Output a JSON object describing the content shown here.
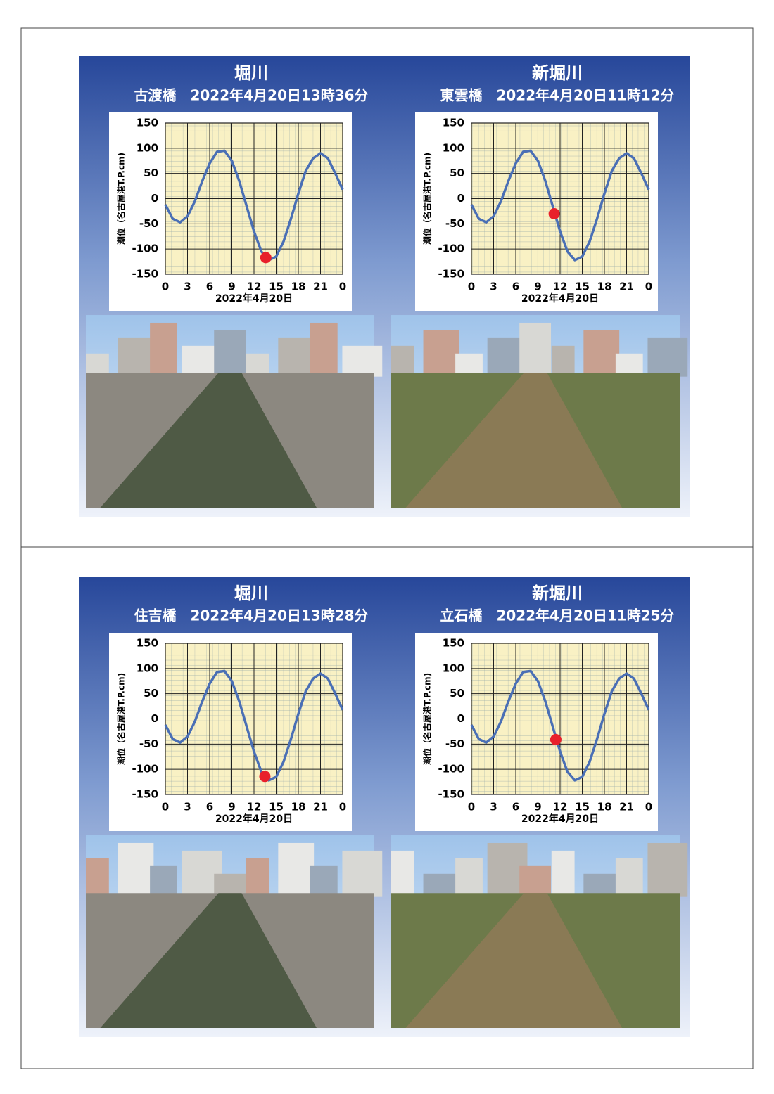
{
  "chart_data": [
    {
      "type": "line",
      "title": "堀川",
      "subtitle": "古渡橋　2022年4月20日13時36分",
      "xlabel": "2022年4月20日",
      "ylabel": "潮位（名古屋港T.P.cm)",
      "x": [
        0,
        1,
        2,
        3,
        4,
        5,
        6,
        7,
        8,
        9,
        10,
        11,
        12,
        13,
        14,
        15,
        16,
        17,
        18,
        19,
        20,
        21,
        22,
        23,
        24
      ],
      "values": [
        -12,
        -40,
        -47,
        -35,
        -5,
        35,
        70,
        93,
        95,
        75,
        35,
        -15,
        -65,
        -105,
        -122,
        -115,
        -85,
        -40,
        10,
        55,
        80,
        90,
        80,
        50,
        18
      ],
      "color": "#4a6fb5",
      "marker": {
        "x": 13.6,
        "y": -117,
        "color": "#e8202a"
      },
      "xlim": [
        0,
        24
      ],
      "xticks": [
        0,
        3,
        6,
        9,
        12,
        15,
        18,
        21,
        {
          "value": 24,
          "label": "0"
        }
      ],
      "ylim": [
        -150,
        150
      ],
      "yticks": [
        -150,
        -100,
        -50,
        0,
        50,
        100,
        150
      ],
      "grid": true
    },
    {
      "type": "line",
      "title": "新堀川",
      "subtitle": "東雲橋　2022年4月20日11時12分",
      "xlabel": "2022年4月20日",
      "ylabel": "潮位（名古屋港T.P.cm)",
      "x": [
        0,
        1,
        2,
        3,
        4,
        5,
        6,
        7,
        8,
        9,
        10,
        11,
        12,
        13,
        14,
        15,
        16,
        17,
        18,
        19,
        20,
        21,
        22,
        23,
        24
      ],
      "values": [
        -12,
        -40,
        -47,
        -35,
        -5,
        35,
        70,
        93,
        95,
        75,
        35,
        -15,
        -65,
        -105,
        -122,
        -115,
        -85,
        -40,
        10,
        55,
        80,
        90,
        80,
        50,
        18
      ],
      "color": "#4a6fb5",
      "marker": {
        "x": 11.2,
        "y": -30,
        "color": "#e8202a"
      },
      "xlim": [
        0,
        24
      ],
      "xticks": [
        0,
        3,
        6,
        9,
        12,
        15,
        18,
        21,
        {
          "value": 24,
          "label": "0"
        }
      ],
      "ylim": [
        -150,
        150
      ],
      "yticks": [
        -150,
        -100,
        -50,
        0,
        50,
        100,
        150
      ],
      "grid": true
    },
    {
      "type": "line",
      "title": "堀川",
      "subtitle": "住吉橋　2022年4月20日13時28分",
      "xlabel": "2022年4月20日",
      "ylabel": "潮位（名古屋港T.P.cm)",
      "x": [
        0,
        1,
        2,
        3,
        4,
        5,
        6,
        7,
        8,
        9,
        10,
        11,
        12,
        13,
        14,
        15,
        16,
        17,
        18,
        19,
        20,
        21,
        22,
        23,
        24
      ],
      "values": [
        -12,
        -40,
        -47,
        -35,
        -5,
        35,
        70,
        93,
        95,
        75,
        35,
        -15,
        -65,
        -105,
        -122,
        -115,
        -85,
        -40,
        10,
        55,
        80,
        90,
        80,
        50,
        18
      ],
      "color": "#4a6fb5",
      "marker": {
        "x": 13.47,
        "y": -114,
        "color": "#e8202a"
      },
      "xlim": [
        0,
        24
      ],
      "xticks": [
        0,
        3,
        6,
        9,
        12,
        15,
        18,
        21,
        {
          "value": 24,
          "label": "0"
        }
      ],
      "ylim": [
        -150,
        150
      ],
      "yticks": [
        -150,
        -100,
        -50,
        0,
        50,
        100,
        150
      ],
      "grid": true
    },
    {
      "type": "line",
      "title": "新堀川",
      "subtitle": "立石橋　2022年4月20日11時25分",
      "xlabel": "2022年4月20日",
      "ylabel": "潮位（名古屋港T.P.cm)",
      "x": [
        0,
        1,
        2,
        3,
        4,
        5,
        6,
        7,
        8,
        9,
        10,
        11,
        12,
        13,
        14,
        15,
        16,
        17,
        18,
        19,
        20,
        21,
        22,
        23,
        24
      ],
      "values": [
        -12,
        -40,
        -47,
        -35,
        -5,
        35,
        70,
        93,
        95,
        75,
        35,
        -15,
        -65,
        -105,
        -122,
        -115,
        -85,
        -40,
        10,
        55,
        80,
        90,
        80,
        50,
        18
      ],
      "color": "#4a6fb5",
      "marker": {
        "x": 11.42,
        "y": -41,
        "color": "#e8202a"
      },
      "xlim": [
        0,
        24
      ],
      "xticks": [
        0,
        3,
        6,
        9,
        12,
        15,
        18,
        21,
        {
          "value": 24,
          "label": "0"
        }
      ],
      "ylim": [
        -150,
        150
      ],
      "yticks": [
        -150,
        -100,
        -50,
        0,
        50,
        100,
        150
      ],
      "grid": true
    }
  ]
}
